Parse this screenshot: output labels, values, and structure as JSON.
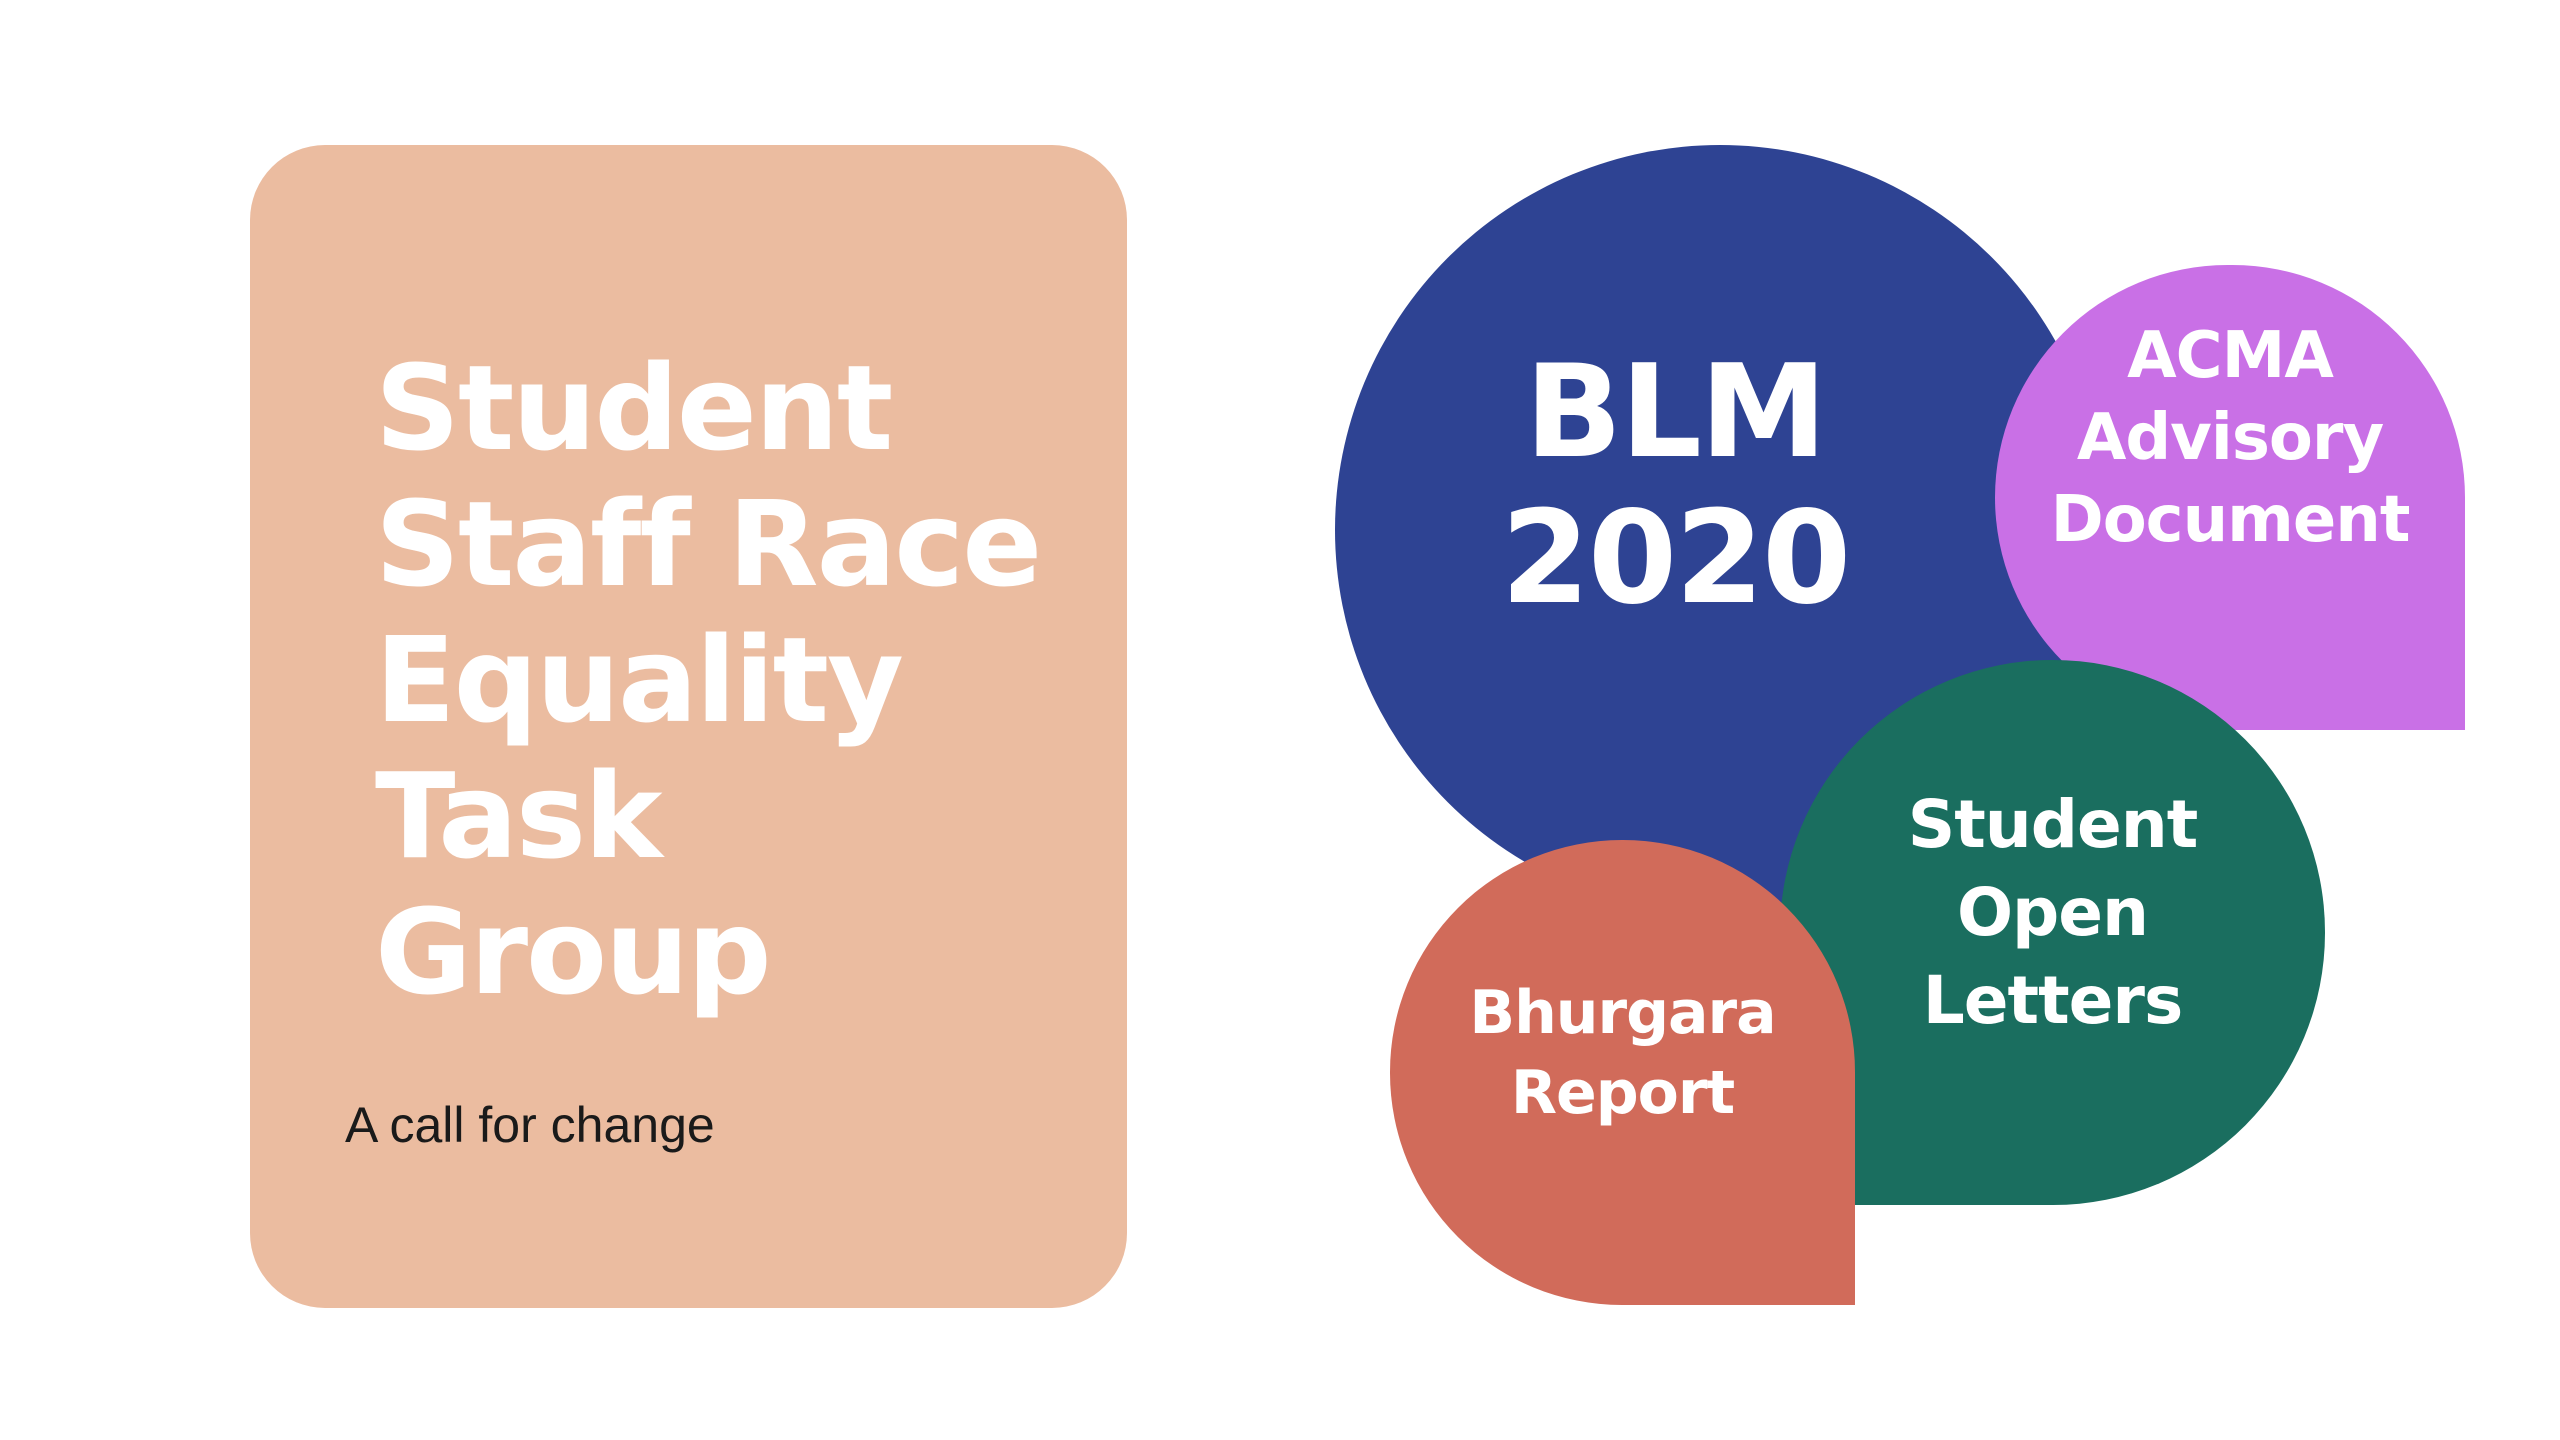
{
  "colors": {
    "background": "#ffffff",
    "title_card": "#ebbca0",
    "blm_bubble": "#2e4393",
    "acma_bubble": "#c970e6",
    "letters_bubble": "#1a6e5f",
    "bhurgara_bubble": "#d16b5a"
  },
  "title_card": {
    "title_lines": [
      "Student",
      "Staff Race",
      "Equality",
      "Task",
      "Group"
    ],
    "subtitle": "A call for change"
  },
  "bubbles": {
    "blm": {
      "lines": [
        "BLM",
        "2020"
      ]
    },
    "acma": {
      "lines": [
        "ACMA",
        "Advisory",
        "Document"
      ]
    },
    "letters": {
      "lines": [
        "Student",
        "Open",
        "Letters"
      ]
    },
    "bhurgara": {
      "lines": [
        "Bhurgara",
        "Report"
      ]
    }
  }
}
